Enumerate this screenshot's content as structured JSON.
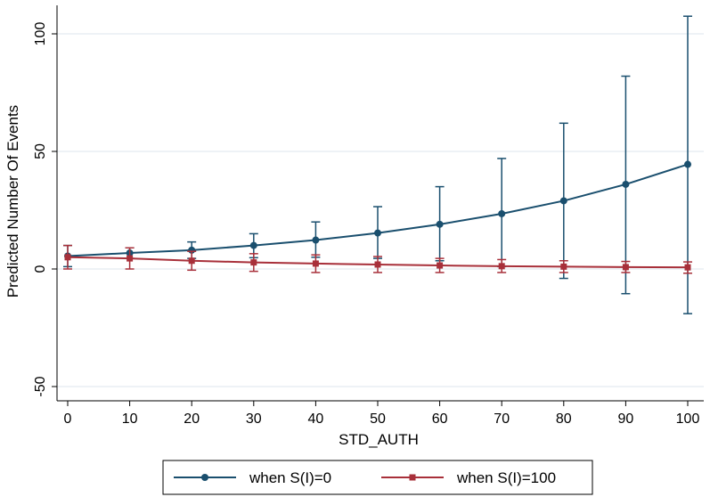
{
  "chart_data": {
    "type": "line",
    "title": "",
    "xlabel": "STD_AUTH",
    "ylabel": "Predicted Number Of Events",
    "xlim": [
      0,
      100
    ],
    "ylim": [
      -50,
      100
    ],
    "x_ticks": [
      "0",
      "10",
      "20",
      "30",
      "40",
      "50",
      "60",
      "70",
      "80",
      "90",
      "100"
    ],
    "y_ticks": [
      "-50",
      "0",
      "50",
      "100"
    ],
    "grid": "horizontal",
    "legend_position": "bottom",
    "x": [
      0,
      10,
      20,
      30,
      40,
      50,
      60,
      70,
      80,
      90,
      100
    ],
    "series": [
      {
        "name": "when S(I)=0",
        "color": "#1a4f6e",
        "marker": "circle",
        "values": [
          5.5,
          6.8,
          8.0,
          10.0,
          12.3,
          15.3,
          19.0,
          23.5,
          29.0,
          36.0,
          44.5
        ],
        "ci_lower": [
          1.0,
          4.5,
          4.5,
          4.8,
          5.0,
          4.5,
          3.5,
          1.0,
          -4.0,
          -10.5,
          -19.0
        ],
        "ci_upper": [
          10.0,
          9.0,
          11.5,
          15.0,
          20.0,
          26.5,
          35.0,
          47.0,
          62.0,
          82.0,
          107.5
        ]
      },
      {
        "name": "when S(I)=100",
        "color": "#a8303a",
        "marker": "square",
        "values": [
          5.0,
          4.5,
          3.5,
          2.8,
          2.3,
          1.9,
          1.5,
          1.2,
          1.0,
          0.8,
          0.7
        ],
        "ci_lower": [
          0.0,
          0.0,
          -0.5,
          -1.0,
          -1.5,
          -1.5,
          -1.5,
          -1.5,
          -1.5,
          -1.5,
          -1.8
        ],
        "ci_upper": [
          10.0,
          9.0,
          7.5,
          6.5,
          6.0,
          5.3,
          4.5,
          4.0,
          3.5,
          3.2,
          3.0
        ]
      }
    ]
  }
}
